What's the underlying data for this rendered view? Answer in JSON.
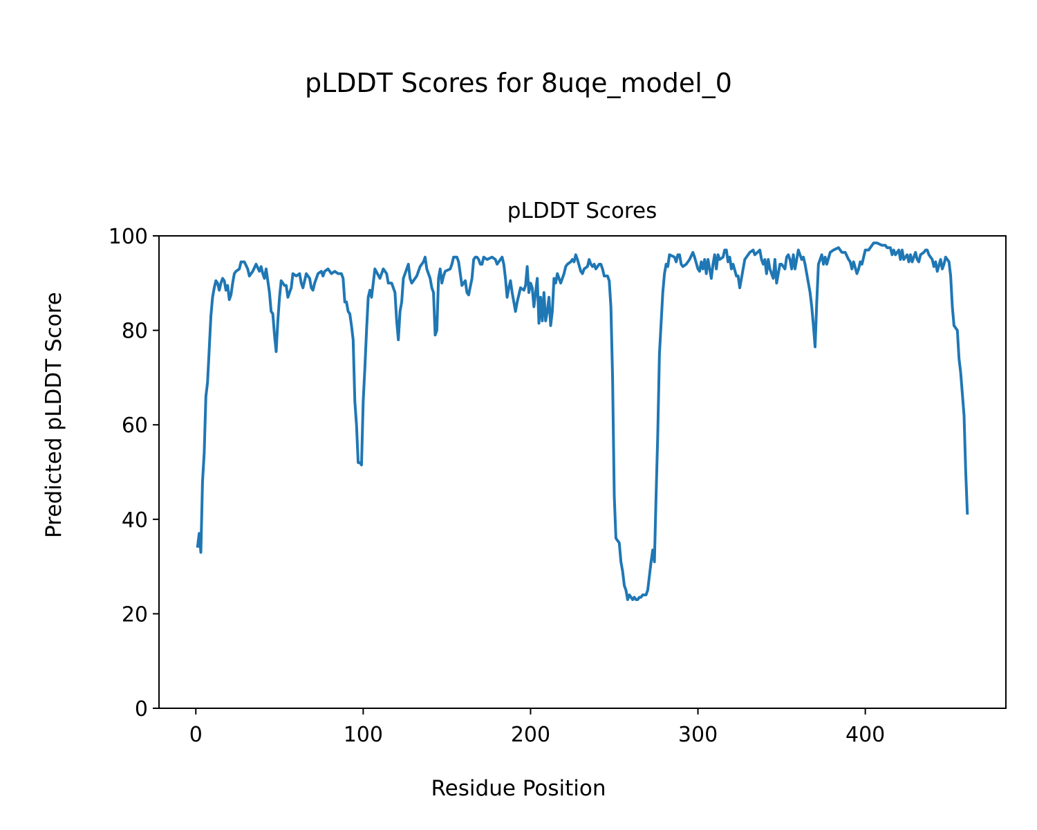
{
  "chart_data": {
    "type": "line",
    "suptitle": "pLDDT Scores for 8uqe_model_0",
    "title": "pLDDT Scores",
    "x_label": "Residue Position",
    "y_label": "Predicted pLDDT Score",
    "xlim": [
      -22,
      484
    ],
    "xticks": [
      0,
      100,
      200,
      300,
      400
    ],
    "ylim": [
      0,
      100
    ],
    "yticks": [
      0,
      20,
      40,
      60,
      80,
      100
    ],
    "grid": false,
    "series": [
      {
        "color": "#1f77b4",
        "x": [
          1,
          2,
          3,
          4,
          5,
          6,
          7,
          8,
          9,
          10,
          11,
          12,
          13,
          14,
          15,
          16,
          17,
          18,
          19,
          20,
          21,
          22,
          23,
          24,
          26,
          27,
          29,
          31,
          32,
          34,
          36,
          38,
          39,
          40,
          41,
          42,
          44,
          45,
          46,
          47,
          48,
          49,
          50,
          51,
          53,
          54,
          55,
          57,
          58,
          60,
          62,
          63,
          64,
          66,
          68,
          69,
          70,
          71,
          73,
          75,
          76,
          77,
          79,
          81,
          83,
          85,
          87,
          88,
          89,
          90,
          91,
          92,
          93,
          94,
          95,
          96,
          97,
          98,
          99,
          100,
          101,
          102,
          103,
          104,
          105,
          106,
          107,
          110,
          112,
          114,
          115,
          117,
          119,
          120,
          121,
          122,
          123,
          124,
          126,
          127,
          128,
          129,
          132,
          134,
          136,
          137,
          138,
          140,
          141,
          142,
          143,
          144,
          145,
          146,
          147,
          148,
          149,
          152,
          153,
          154,
          156,
          157,
          158,
          159,
          161,
          162,
          163,
          165,
          166,
          167,
          168,
          169,
          170,
          171,
          172,
          174,
          177,
          179,
          180,
          182,
          183,
          184,
          185,
          186,
          187,
          188,
          189,
          191,
          192,
          194,
          196,
          197,
          198,
          199,
          200,
          201,
          202,
          204,
          205,
          206,
          207,
          208,
          209,
          210,
          211,
          212,
          213,
          214,
          215,
          216,
          218,
          220,
          221,
          222,
          224,
          225,
          226,
          227,
          228,
          230,
          231,
          232,
          234,
          235,
          236,
          237,
          238,
          239,
          241,
          242,
          243,
          244,
          246,
          247,
          248,
          249,
          250,
          251,
          253,
          254,
          255,
          256,
          257,
          258,
          259,
          260,
          261,
          262,
          263,
          264,
          265,
          266,
          267,
          269,
          270,
          271,
          272,
          273,
          274,
          275,
          276,
          277,
          279,
          280,
          281,
          282,
          283,
          286,
          287,
          288,
          289,
          290,
          291,
          293,
          295,
          297,
          298,
          300,
          301,
          302,
          303,
          304,
          305,
          306,
          308,
          309,
          310,
          311,
          312,
          313,
          315,
          316,
          317,
          318,
          319,
          320,
          321,
          323,
          324,
          325,
          326,
          327,
          328,
          331,
          333,
          334,
          337,
          338,
          339,
          340,
          341,
          342,
          343,
          345,
          346,
          347,
          348,
          349,
          350,
          352,
          353,
          354,
          355,
          356,
          357,
          358,
          360,
          361,
          362,
          363,
          364,
          365,
          367,
          368,
          369,
          370,
          371,
          372,
          374,
          375,
          376,
          377,
          379,
          381,
          384,
          385,
          386,
          388,
          390,
          391,
          392,
          393,
          395,
          396,
          397,
          398,
          400,
          402,
          403,
          405,
          407,
          410,
          412,
          413,
          415,
          416,
          417,
          418,
          420,
          421,
          422,
          423,
          425,
          426,
          427,
          428,
          430,
          431,
          432,
          433,
          435,
          436,
          437,
          438,
          440,
          441,
          442,
          443,
          445,
          446,
          447,
          448,
          450,
          451,
          452,
          453,
          455,
          456,
          457,
          459,
          460,
          461
        ],
        "values": [
          34,
          37,
          33,
          48,
          54,
          66,
          69,
          76,
          83,
          87,
          89,
          90.5,
          90,
          88.5,
          90,
          91,
          90.5,
          88.5,
          89.5,
          86.5,
          87.5,
          90,
          92,
          92.5,
          93,
          94.5,
          94.5,
          93,
          91.5,
          92.5,
          94,
          92.5,
          93.5,
          92,
          91,
          93,
          88,
          84,
          83.5,
          79,
          75.5,
          82,
          87,
          90.5,
          89.5,
          89.5,
          87,
          89,
          92,
          91.5,
          92,
          90,
          89,
          92,
          91,
          89,
          88.5,
          90,
          92,
          92.5,
          91.5,
          92.5,
          93,
          92,
          92.5,
          92,
          92,
          91,
          86,
          86,
          84,
          83.5,
          81,
          78,
          65,
          60,
          52,
          52,
          51.5,
          65,
          72,
          80,
          87,
          88.5,
          87,
          90,
          93,
          91,
          93,
          92,
          90,
          90,
          88,
          82,
          78,
          84,
          86,
          91,
          93,
          94,
          91,
          90,
          91.5,
          93.5,
          94.5,
          95.5,
          93,
          91,
          89,
          88,
          79,
          80,
          91,
          93,
          90,
          91.5,
          92.5,
          93,
          94,
          95.5,
          95.5,
          94.5,
          92,
          89.5,
          90.5,
          88,
          87.5,
          91,
          95,
          95.5,
          95.5,
          95,
          94,
          94,
          95.5,
          95,
          95.5,
          95,
          94,
          95,
          95.5,
          94,
          91,
          87,
          89,
          90.5,
          88,
          84,
          86,
          89,
          88.5,
          89.5,
          93.5,
          88,
          90,
          89,
          85,
          91,
          81.5,
          87,
          82,
          88,
          82,
          84,
          87,
          81,
          84,
          91,
          90,
          92,
          90,
          92,
          93.5,
          94,
          94.5,
          95,
          94.5,
          96,
          95,
          92.5,
          92,
          93,
          93.5,
          95,
          94,
          93.5,
          94,
          93,
          94,
          94,
          93,
          91.5,
          91.5,
          90.5,
          85,
          70,
          45,
          36,
          35,
          31,
          29,
          26,
          25,
          23,
          24,
          23.5,
          23,
          23.5,
          23,
          23,
          23.5,
          23.5,
          24,
          24,
          25,
          28,
          31,
          33.5,
          31,
          45,
          58,
          75,
          88,
          92,
          94,
          93.5,
          96,
          95.5,
          94.5,
          96,
          96,
          94,
          93.5,
          94,
          95,
          96.5,
          95.5,
          93,
          92.5,
          94.5,
          93,
          95,
          92,
          95,
          91,
          94,
          96,
          93,
          96,
          95,
          95.5,
          97,
          97,
          94.5,
          95.5,
          93,
          94,
          91.5,
          91.5,
          89,
          91,
          93,
          95,
          96.5,
          97,
          96,
          97,
          95,
          94,
          95,
          92,
          95,
          93,
          91,
          95,
          90,
          92,
          94,
          94,
          93,
          95.5,
          96,
          95,
          93,
          96,
          93,
          97,
          96,
          95,
          95.5,
          94,
          92,
          88,
          85,
          81,
          76.5,
          86,
          94,
          96,
          94,
          95.5,
          94,
          96.5,
          97,
          97.5,
          97,
          96.5,
          96.5,
          95,
          94.5,
          93,
          94.5,
          92,
          93,
          94.5,
          94,
          97,
          97,
          97.5,
          98.5,
          98.5,
          98,
          98,
          97.5,
          97.5,
          96,
          97,
          96,
          97,
          95,
          97,
          95,
          96,
          94.5,
          96,
          94.5,
          96.5,
          95,
          94.5,
          96,
          96.5,
          97,
          97,
          96,
          95,
          93.5,
          94.5,
          92.5,
          95,
          93,
          94,
          95.5,
          94.5,
          91.5,
          85,
          81,
          80,
          74,
          71,
          62,
          50,
          41
        ]
      }
    ]
  }
}
